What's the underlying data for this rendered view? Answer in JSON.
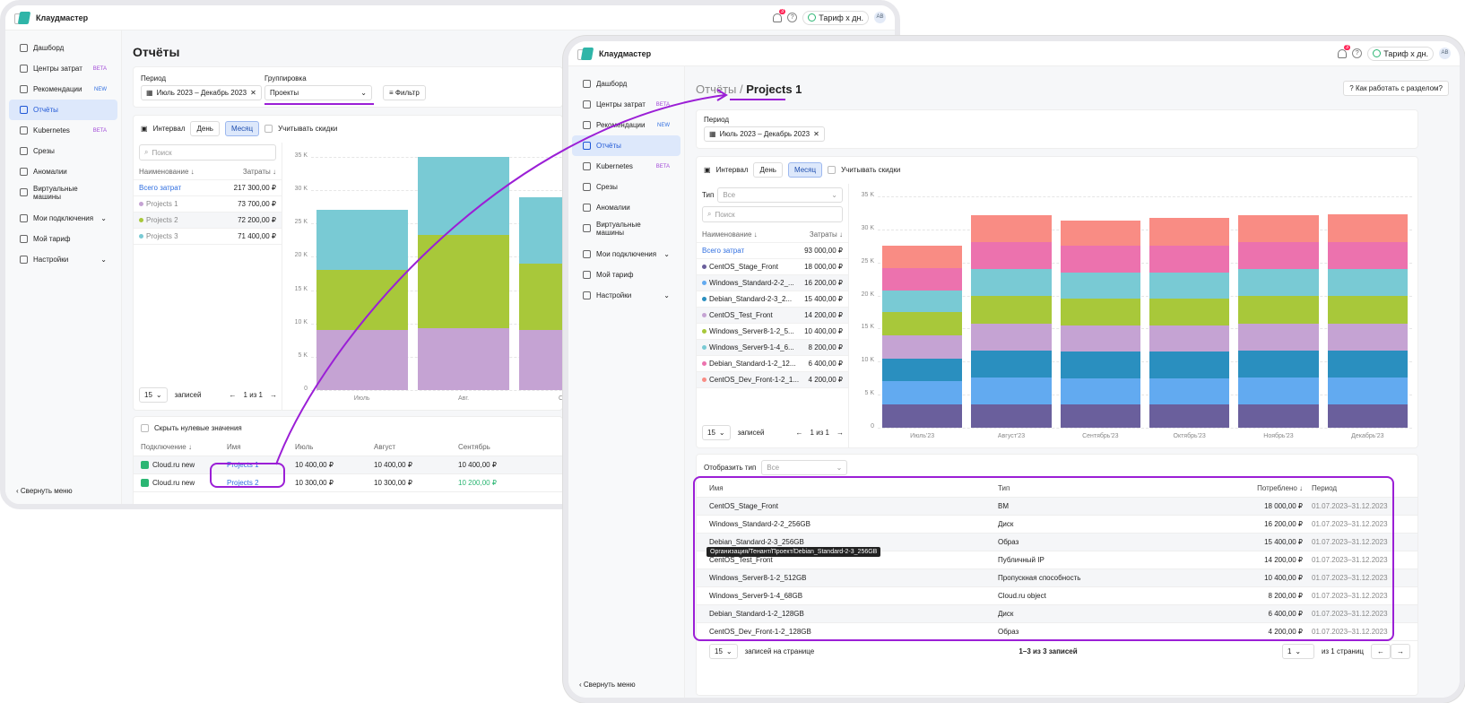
{
  "app": {
    "name": "Клаудмастер",
    "notif_count": "3",
    "tarif": "Тариф х дн.",
    "avatar": "АВ"
  },
  "sidebar": {
    "items": [
      {
        "label": "Дашборд",
        "icon": "dashboard-icon"
      },
      {
        "label": "Центры затрат",
        "badge": "BETA",
        "icon": "wallet-icon"
      },
      {
        "label": "Рекомендации",
        "badge": "NEW",
        "icon": "cloud-icon"
      },
      {
        "label": "Отчёты",
        "active": true,
        "icon": "report-icon"
      },
      {
        "label": "Kubernetes",
        "badge": "BETA",
        "icon": "kubernetes-icon"
      },
      {
        "label": "Срезы",
        "icon": "slices-icon"
      },
      {
        "label": "Аномалии",
        "icon": "anomaly-icon"
      },
      {
        "label": "Виртуальные машины",
        "icon": "vm-icon"
      },
      {
        "label": "Мои подключения",
        "icon": "cloud-icon"
      },
      {
        "label": "Мой тариф",
        "icon": "tarif-icon"
      },
      {
        "label": "Настройки",
        "icon": "gear-icon"
      }
    ],
    "collapse": "Свернуть меню"
  },
  "left": {
    "title": "Отчёты",
    "period_label": "Период",
    "period_value": "Июль 2023 – Декабрь 2023",
    "grouping_label": "Группировка",
    "grouping_value": "Проекты",
    "filter": "Фильтр",
    "interval": "Интервал",
    "day": "День",
    "month": "Месяц",
    "discounts": "Учитывать скидки",
    "search_placeholder": "Поиск",
    "col_name": "Наименование ↓",
    "col_cost": "Затраты ↓",
    "rows": [
      {
        "name": "Всего затрат",
        "cost": "217 300,00 ₽",
        "color": ""
      },
      {
        "name": "Projects 1",
        "cost": "73 700,00 ₽",
        "color": "#c5a3d3"
      },
      {
        "name": "Projects 2",
        "cost": "72 200,00 ₽",
        "color": "#a8c83a"
      },
      {
        "name": "Projects 3",
        "cost": "71 400,00 ₽",
        "color": "#79cad4"
      }
    ],
    "page_size": "15",
    "records": "записей",
    "page_of": "1 из 1",
    "hide_zero": "Скрыть нулевые значения",
    "tbl_head": [
      "Подключение ↓",
      "Имя",
      "Июль",
      "Август",
      "Сентябрь"
    ],
    "tbl_rows": [
      {
        "conn": "Cloud.ru new",
        "name": "Projects 1",
        "jul": "10 400,00 ₽",
        "aug": "10 400,00 ₽",
        "sep": "10 400,00 ₽"
      },
      {
        "conn": "Cloud.ru new",
        "name": "Projects 2",
        "jul": "10 300,00 ₽",
        "aug": "10 300,00 ₽",
        "sep": "10 200,00 ₽"
      }
    ]
  },
  "right": {
    "breadcrumb_parent": "Отчёты",
    "breadcrumb_sep": "/",
    "title": "Projects 1",
    "help": "Как работать с разделом?",
    "period_label": "Период",
    "period_value": "Июль 2023 – Декабрь 2023",
    "interval": "Интервал",
    "day": "День",
    "month": "Месяц",
    "discounts": "Учитывать скидки",
    "type_label": "Тип",
    "type_value": "Все",
    "search_placeholder": "Поиск",
    "col_name": "Наименование ↓",
    "col_cost": "Затраты ↓",
    "rows": [
      {
        "name": "Всего затрат",
        "cost": "93 000,00 ₽",
        "color": ""
      },
      {
        "name": "CentOS_Stage_Front",
        "cost": "18 000,00 ₽",
        "color": "#6a5f9c"
      },
      {
        "name": "Windows_Standard-2-2_...",
        "cost": "16 200,00 ₽",
        "color": "#62aaf0"
      },
      {
        "name": "Debian_Standard-2-3_2...",
        "cost": "15 400,00 ₽",
        "color": "#2a8fbf"
      },
      {
        "name": "CentOS_Test_Front",
        "cost": "14 200,00 ₽",
        "color": "#c5a3d3"
      },
      {
        "name": "Windows_Server8-1-2_5...",
        "cost": "10 400,00 ₽",
        "color": "#a8c83a"
      },
      {
        "name": "Windows_Server9-1-4_6...",
        "cost": "8 200,00 ₽",
        "color": "#79cad4"
      },
      {
        "name": "Debian_Standard-1-2_12...",
        "cost": "6 400,00 ₽",
        "color": "#ec72ae"
      },
      {
        "name": "CentOS_Dev_Front-1-2_1...",
        "cost": "4 200,00 ₽",
        "color": "#f98c84"
      }
    ],
    "page_size": "15",
    "records": "записей",
    "page_of": "1 из 1",
    "show_type": "Отобразить тип",
    "show_type_value": "Все",
    "tbl_head": [
      "Имя",
      "Тип",
      "Потреблено ↓",
      "Период"
    ],
    "tbl_rows": [
      {
        "name": "CentOS_Stage_Front",
        "type": "ВМ",
        "cost": "18 000,00 ₽",
        "period": "01.07.2023–31.12.2023"
      },
      {
        "name": "Windows_Standard-2-2_256GB",
        "type": "Диск",
        "cost": "16 200,00 ₽",
        "period": "01.07.2023–31.12.2023"
      },
      {
        "name": "Debian_Standard-2-3_256GB",
        "type": "Образ",
        "cost": "15 400,00 ₽",
        "period": "01.07.2023–31.12.2023"
      },
      {
        "name": "CentOS_Test_Front",
        "type": "Публичный IP",
        "cost": "14 200,00 ₽",
        "period": "01.07.2023–31.12.2023"
      },
      {
        "name": "Windows_Server8-1-2_512GB",
        "type": "Пропускная способность",
        "cost": "10 400,00 ₽",
        "period": "01.07.2023–31.12.2023"
      },
      {
        "name": "Windows_Server9-1-4_68GB",
        "type": "Cloud.ru object",
        "cost": "8 200,00 ₽",
        "period": "01.07.2023–31.12.2023"
      },
      {
        "name": "Debian_Standard-1-2_128GB",
        "type": "Диск",
        "cost": "6 400,00 ₽",
        "period": "01.07.2023–31.12.2023"
      },
      {
        "name": "CentOS_Dev_Front-1-2_128GB",
        "type": "Образ",
        "cost": "4 200,00 ₽",
        "period": "01.07.2023–31.12.2023"
      }
    ],
    "tooltip": "Организация/Тенант/Проект/Debian_Standard-2-3_256GB",
    "footer_size": "15",
    "footer_per_page": "записей на странице",
    "footer_range": "1–3 из 3 записей",
    "footer_page": "1",
    "footer_of": "из 1 страниц"
  },
  "chart_data": [
    {
      "type": "bar",
      "stacked": true,
      "categories": [
        "Июль",
        "Авг.",
        "Сен."
      ],
      "yticks": [
        "0",
        "5 K",
        "10 K",
        "15 K",
        "20 K",
        "25 K",
        "30 K",
        "35 K"
      ],
      "ylim": [
        0,
        35000
      ],
      "series": [
        {
          "name": "Projects 1",
          "color": "#c5a3d3",
          "values": [
            9000,
            9300,
            9000
          ]
        },
        {
          "name": "Projects 2",
          "color": "#a8c83a",
          "values": [
            9000,
            14000,
            10000
          ]
        },
        {
          "name": "Projects 3",
          "color": "#79cad4",
          "values": [
            9000,
            11700,
            10000
          ]
        }
      ]
    },
    {
      "type": "bar",
      "stacked": true,
      "categories": [
        "Июль'23",
        "Август'23",
        "Сентябрь'23",
        "Октябрь'23",
        "Ноябрь'23",
        "Декабрь'23"
      ],
      "yticks": [
        "0",
        "5 K",
        "10 K",
        "15 K",
        "20 K",
        "25 K",
        "30 K",
        "35 K"
      ],
      "ylim": [
        0,
        35000
      ],
      "series": [
        {
          "name": "CentOS_Stage_Front",
          "color": "#6a5f9c",
          "values": [
            3500,
            3500,
            3500,
            3500,
            3500,
            3500
          ]
        },
        {
          "name": "Windows_Standard-2-2",
          "color": "#62aaf0",
          "values": [
            3500,
            4100,
            4000,
            4000,
            4100,
            4100
          ]
        },
        {
          "name": "Debian_Standard-2-3",
          "color": "#2a8fbf",
          "values": [
            3500,
            4100,
            4000,
            4000,
            4100,
            4100
          ]
        },
        {
          "name": "CentOS_Test_Front",
          "color": "#c5a3d3",
          "values": [
            3500,
            4100,
            4000,
            4000,
            4100,
            4100
          ]
        },
        {
          "name": "Windows_Server8-1-2",
          "color": "#a8c83a",
          "values": [
            3500,
            4100,
            4000,
            4000,
            4100,
            4100
          ]
        },
        {
          "name": "Windows_Server9-1-4",
          "color": "#79cad4",
          "values": [
            3300,
            4100,
            4000,
            4000,
            4100,
            4100
          ]
        },
        {
          "name": "Debian_Standard-1-2",
          "color": "#ec72ae",
          "values": [
            3300,
            4100,
            4000,
            4000,
            4100,
            4100
          ]
        },
        {
          "name": "CentOS_Dev_Front-1-2",
          "color": "#f98c84",
          "values": [
            3500,
            4000,
            3800,
            4200,
            4000,
            4200
          ]
        }
      ]
    }
  ]
}
